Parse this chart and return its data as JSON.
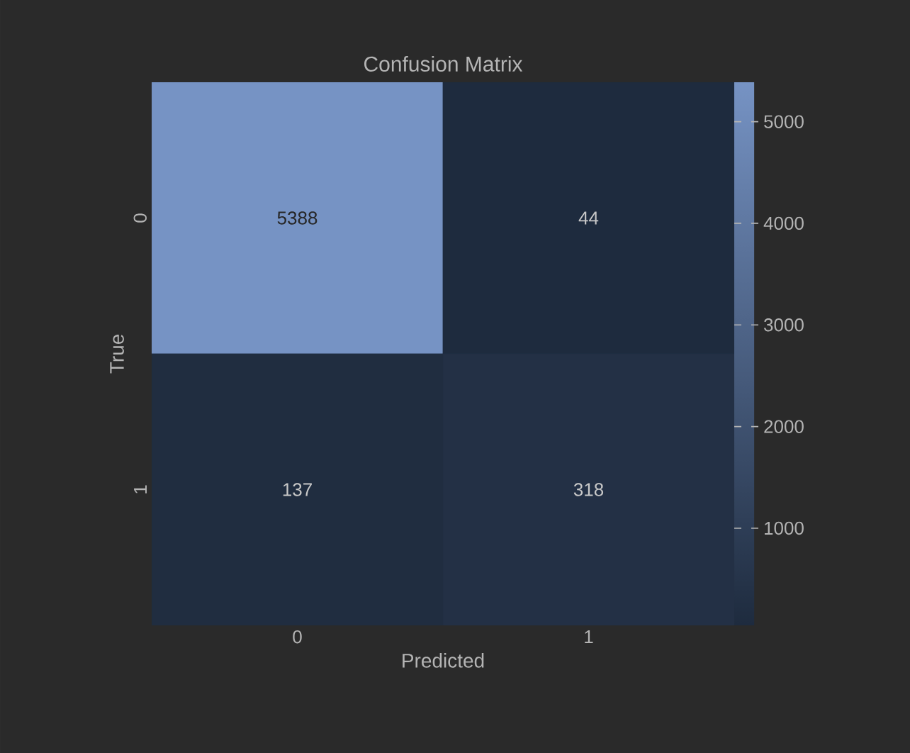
{
  "chart_data": {
    "type": "heatmap",
    "title": "Confusion Matrix",
    "xlabel": "Predicted",
    "ylabel": "True",
    "categories": [
      "0",
      "1"
    ],
    "y_categories": [
      "0",
      "1"
    ],
    "cells": [
      [
        5388,
        44
      ],
      [
        137,
        318
      ]
    ],
    "clim": [
      44,
      5388
    ],
    "cticks": [
      1000,
      2000,
      3000,
      4000,
      5000
    ],
    "data_labels": true
  }
}
